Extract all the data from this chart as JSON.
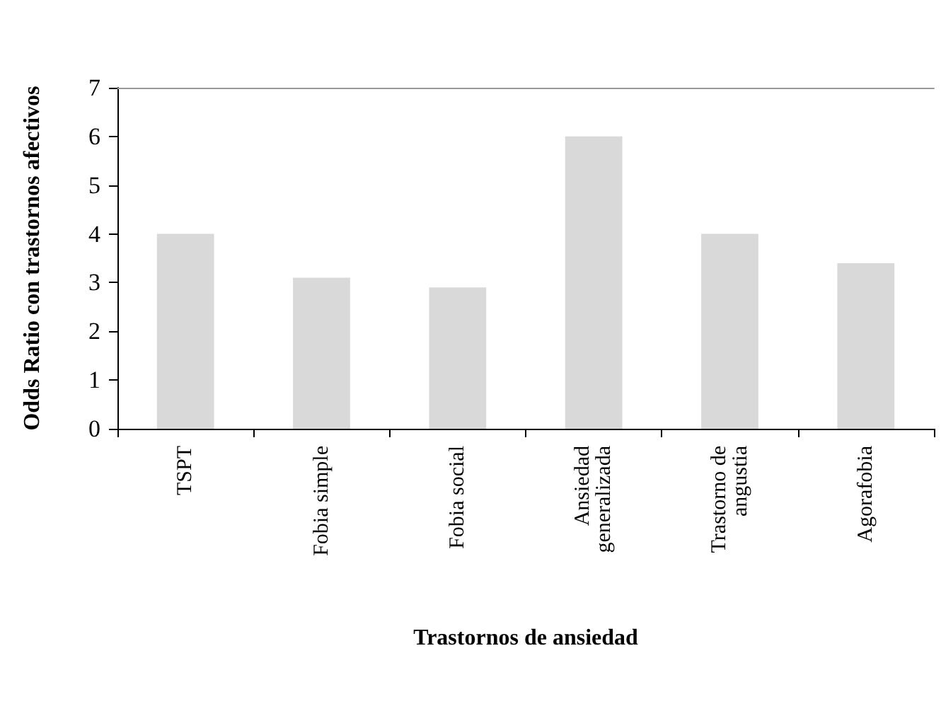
{
  "chart_data": {
    "type": "bar",
    "xlabel": "Trastornos de ansiedad",
    "ylabel": "Odds Ratio con trastornos afectivos",
    "categories": [
      "TSPT",
      "Fobia simple",
      "Fobia social",
      "Ansiedad\ngeneralizada",
      "Trastorno de\nangustia",
      "Agorafobia"
    ],
    "values": [
      4,
      3.1,
      2.9,
      6,
      4,
      3.4
    ],
    "color": "#d9d9d9",
    "ylim": [
      0,
      7
    ],
    "yticks": [
      0,
      1,
      2,
      3,
      4,
      5,
      6,
      7
    ],
    "grid": false
  }
}
